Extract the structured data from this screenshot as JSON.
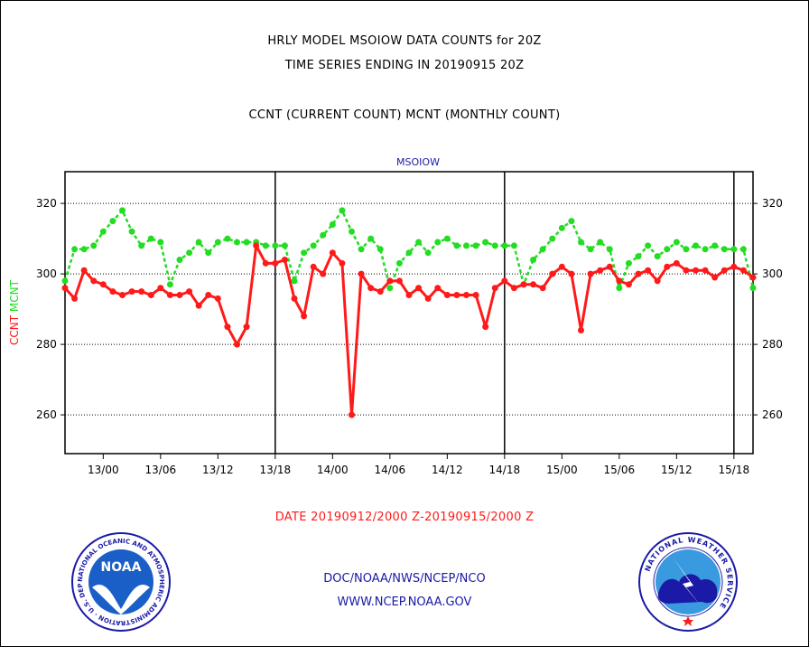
{
  "header": {
    "title_line1": "HRLY MODEL MSOIOW DATA COUNTS for 20Z",
    "title_line2": "TIME SERIES ENDING IN 20190915 20Z",
    "subtitle": "CCNT (CURRENT COUNT) MCNT (MONTHLY COUNT)"
  },
  "footer": {
    "date_range": "DATE 20190912/2000 Z-20190915/2000 Z",
    "org": "DOC/NOAA/NWS/NCEP/NCO",
    "url": "WWW.NCEP.NOAA.GOV"
  },
  "logos": {
    "noaa_text": "NOAA",
    "noaa_ring_text": "NATIONAL OCEANIC AND ATMOSPHERIC ADMINISTRATION · U.S. DEPARTMENT OF COMMERCE ·",
    "nws_ring_text": "NATIONAL WEATHER SERVICE"
  },
  "colors": {
    "ccnt": "#ff1a1a",
    "mcnt": "#22dd22",
    "blue": "#1a1aa6"
  },
  "chart_data": {
    "type": "line",
    "title": "MSOIOW",
    "ylabel_left_ccnt": "CCNT",
    "ylabel_left_mcnt": "MCNT",
    "ylim": [
      249,
      329
    ],
    "yticks": [
      260,
      280,
      300,
      320
    ],
    "ytick_labels": [
      "260",
      "280",
      "300",
      "320"
    ],
    "xticks": [
      4,
      10,
      16,
      22,
      28,
      34,
      40,
      46,
      52,
      58,
      64,
      70
    ],
    "xtick_labels": [
      "13/00",
      "13/06",
      "13/12",
      "13/18",
      "14/00",
      "14/06",
      "14/12",
      "14/18",
      "15/00",
      "15/06",
      "15/12",
      "15/18"
    ],
    "xlim": [
      0,
      72
    ],
    "day_boundaries": [
      22,
      46,
      70
    ],
    "grid": true,
    "series": [
      {
        "name": "CCNT",
        "values": [
          296,
          293,
          301,
          298,
          297,
          295,
          294,
          295,
          295,
          294,
          296,
          294,
          294,
          295,
          291,
          294,
          293,
          285,
          280,
          285,
          308,
          303,
          303,
          304,
          293,
          288,
          302,
          300,
          306,
          303,
          260,
          300,
          296,
          295,
          298,
          298,
          294,
          296,
          293,
          296,
          294,
          294,
          294,
          294,
          285,
          296,
          298,
          296,
          297,
          297,
          296,
          300,
          302,
          300,
          284,
          300,
          301,
          302,
          298,
          297,
          300,
          301,
          298,
          302,
          303,
          301,
          301,
          301,
          299,
          301,
          302,
          301,
          299
        ]
      },
      {
        "name": "MCNT",
        "values": [
          298,
          307,
          307,
          308,
          312,
          315,
          318,
          312,
          308,
          310,
          309,
          297,
          304,
          306,
          309,
          306,
          309,
          310,
          309,
          309,
          309,
          308,
          308,
          308,
          298,
          306,
          308,
          311,
          314,
          318,
          312,
          307,
          310,
          307,
          296,
          303,
          306,
          309,
          306,
          309,
          310,
          308,
          308,
          308,
          309,
          308,
          308,
          308,
          297,
          304,
          307,
          310,
          313,
          315,
          309,
          307,
          309,
          307,
          296,
          303,
          305,
          308,
          305,
          307,
          309,
          307,
          308,
          307,
          308,
          307,
          307,
          307,
          296
        ]
      }
    ]
  }
}
